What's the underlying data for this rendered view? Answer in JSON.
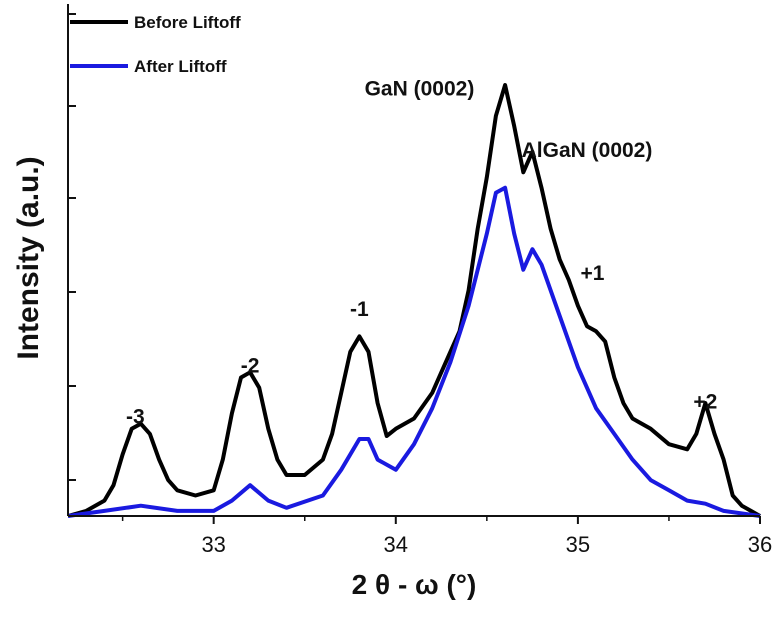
{
  "chart_data": {
    "type": "line",
    "xlabel": "2 θ - ω (°)",
    "ylabel": "Intensity (a.u.)",
    "xlim": [
      32.2,
      36.0
    ],
    "ylim": [
      0,
      4.6
    ],
    "y_scale": "log",
    "x_ticks": [
      33,
      34,
      35,
      36
    ],
    "x_tick_labels": [
      "33",
      "34",
      "35",
      "36"
    ],
    "legend": {
      "position": "top-left",
      "entries": [
        {
          "label": "Before Liftoff",
          "color": "#000000"
        },
        {
          "label": "After Liftoff",
          "color": "#1a1ae0"
        }
      ]
    },
    "annotations": [
      {
        "text": "GaN (0002)",
        "x": 34.13,
        "y": 4.1
      },
      {
        "text": "AlGaN (0002)",
        "x": 35.05,
        "y": 3.5
      },
      {
        "text": "-3",
        "x": 32.57,
        "y": 0.9
      },
      {
        "text": "-2",
        "x": 33.2,
        "y": 1.4
      },
      {
        "text": "-1",
        "x": 33.8,
        "y": 1.95
      },
      {
        "text": "+1",
        "x": 35.08,
        "y": 2.3
      },
      {
        "text": "+2",
        "x": 35.7,
        "y": 1.05
      }
    ],
    "series": [
      {
        "name": "Before Liftoff",
        "color": "#000000",
        "x": [
          32.2,
          32.3,
          32.4,
          32.45,
          32.5,
          32.55,
          32.6,
          32.65,
          32.7,
          32.75,
          32.8,
          32.9,
          33.0,
          33.05,
          33.1,
          33.15,
          33.2,
          33.25,
          33.3,
          33.35,
          33.4,
          33.5,
          33.6,
          33.65,
          33.7,
          33.75,
          33.8,
          33.85,
          33.9,
          33.95,
          34.0,
          34.1,
          34.2,
          34.3,
          34.35,
          34.4,
          34.45,
          34.5,
          34.55,
          34.6,
          34.65,
          34.7,
          34.75,
          34.8,
          34.85,
          34.9,
          34.95,
          35.0,
          35.05,
          35.1,
          35.15,
          35.2,
          35.25,
          35.3,
          35.4,
          35.5,
          35.6,
          35.65,
          35.7,
          35.75,
          35.8,
          35.85,
          35.9,
          36.0
        ],
        "values": [
          0.0,
          0.05,
          0.15,
          0.3,
          0.6,
          0.85,
          0.9,
          0.8,
          0.55,
          0.35,
          0.25,
          0.2,
          0.25,
          0.55,
          1.0,
          1.35,
          1.4,
          1.25,
          0.85,
          0.55,
          0.4,
          0.4,
          0.55,
          0.8,
          1.2,
          1.6,
          1.75,
          1.6,
          1.1,
          0.78,
          0.85,
          0.95,
          1.2,
          1.6,
          1.8,
          2.2,
          2.8,
          3.3,
          3.9,
          4.2,
          3.8,
          3.35,
          3.55,
          3.2,
          2.8,
          2.5,
          2.3,
          2.05,
          1.85,
          1.8,
          1.7,
          1.35,
          1.1,
          0.95,
          0.85,
          0.7,
          0.65,
          0.8,
          1.1,
          0.8,
          0.55,
          0.2,
          0.1,
          0.0
        ]
      },
      {
        "name": "After Liftoff",
        "color": "#1a1ae0",
        "x": [
          32.2,
          32.4,
          32.6,
          32.8,
          33.0,
          33.1,
          33.2,
          33.3,
          33.4,
          33.6,
          33.7,
          33.8,
          33.85,
          33.9,
          34.0,
          34.1,
          34.2,
          34.3,
          34.4,
          34.5,
          34.55,
          34.6,
          34.65,
          34.7,
          34.75,
          34.8,
          34.9,
          35.0,
          35.1,
          35.2,
          35.3,
          35.4,
          35.5,
          35.6,
          35.7,
          35.8,
          36.0
        ],
        "values": [
          0.0,
          0.05,
          0.1,
          0.05,
          0.05,
          0.15,
          0.3,
          0.15,
          0.08,
          0.2,
          0.45,
          0.75,
          0.75,
          0.55,
          0.45,
          0.7,
          1.05,
          1.5,
          2.05,
          2.75,
          3.15,
          3.2,
          2.75,
          2.4,
          2.6,
          2.45,
          1.95,
          1.45,
          1.05,
          0.8,
          0.55,
          0.35,
          0.25,
          0.15,
          0.12,
          0.05,
          0.0
        ]
      }
    ]
  }
}
